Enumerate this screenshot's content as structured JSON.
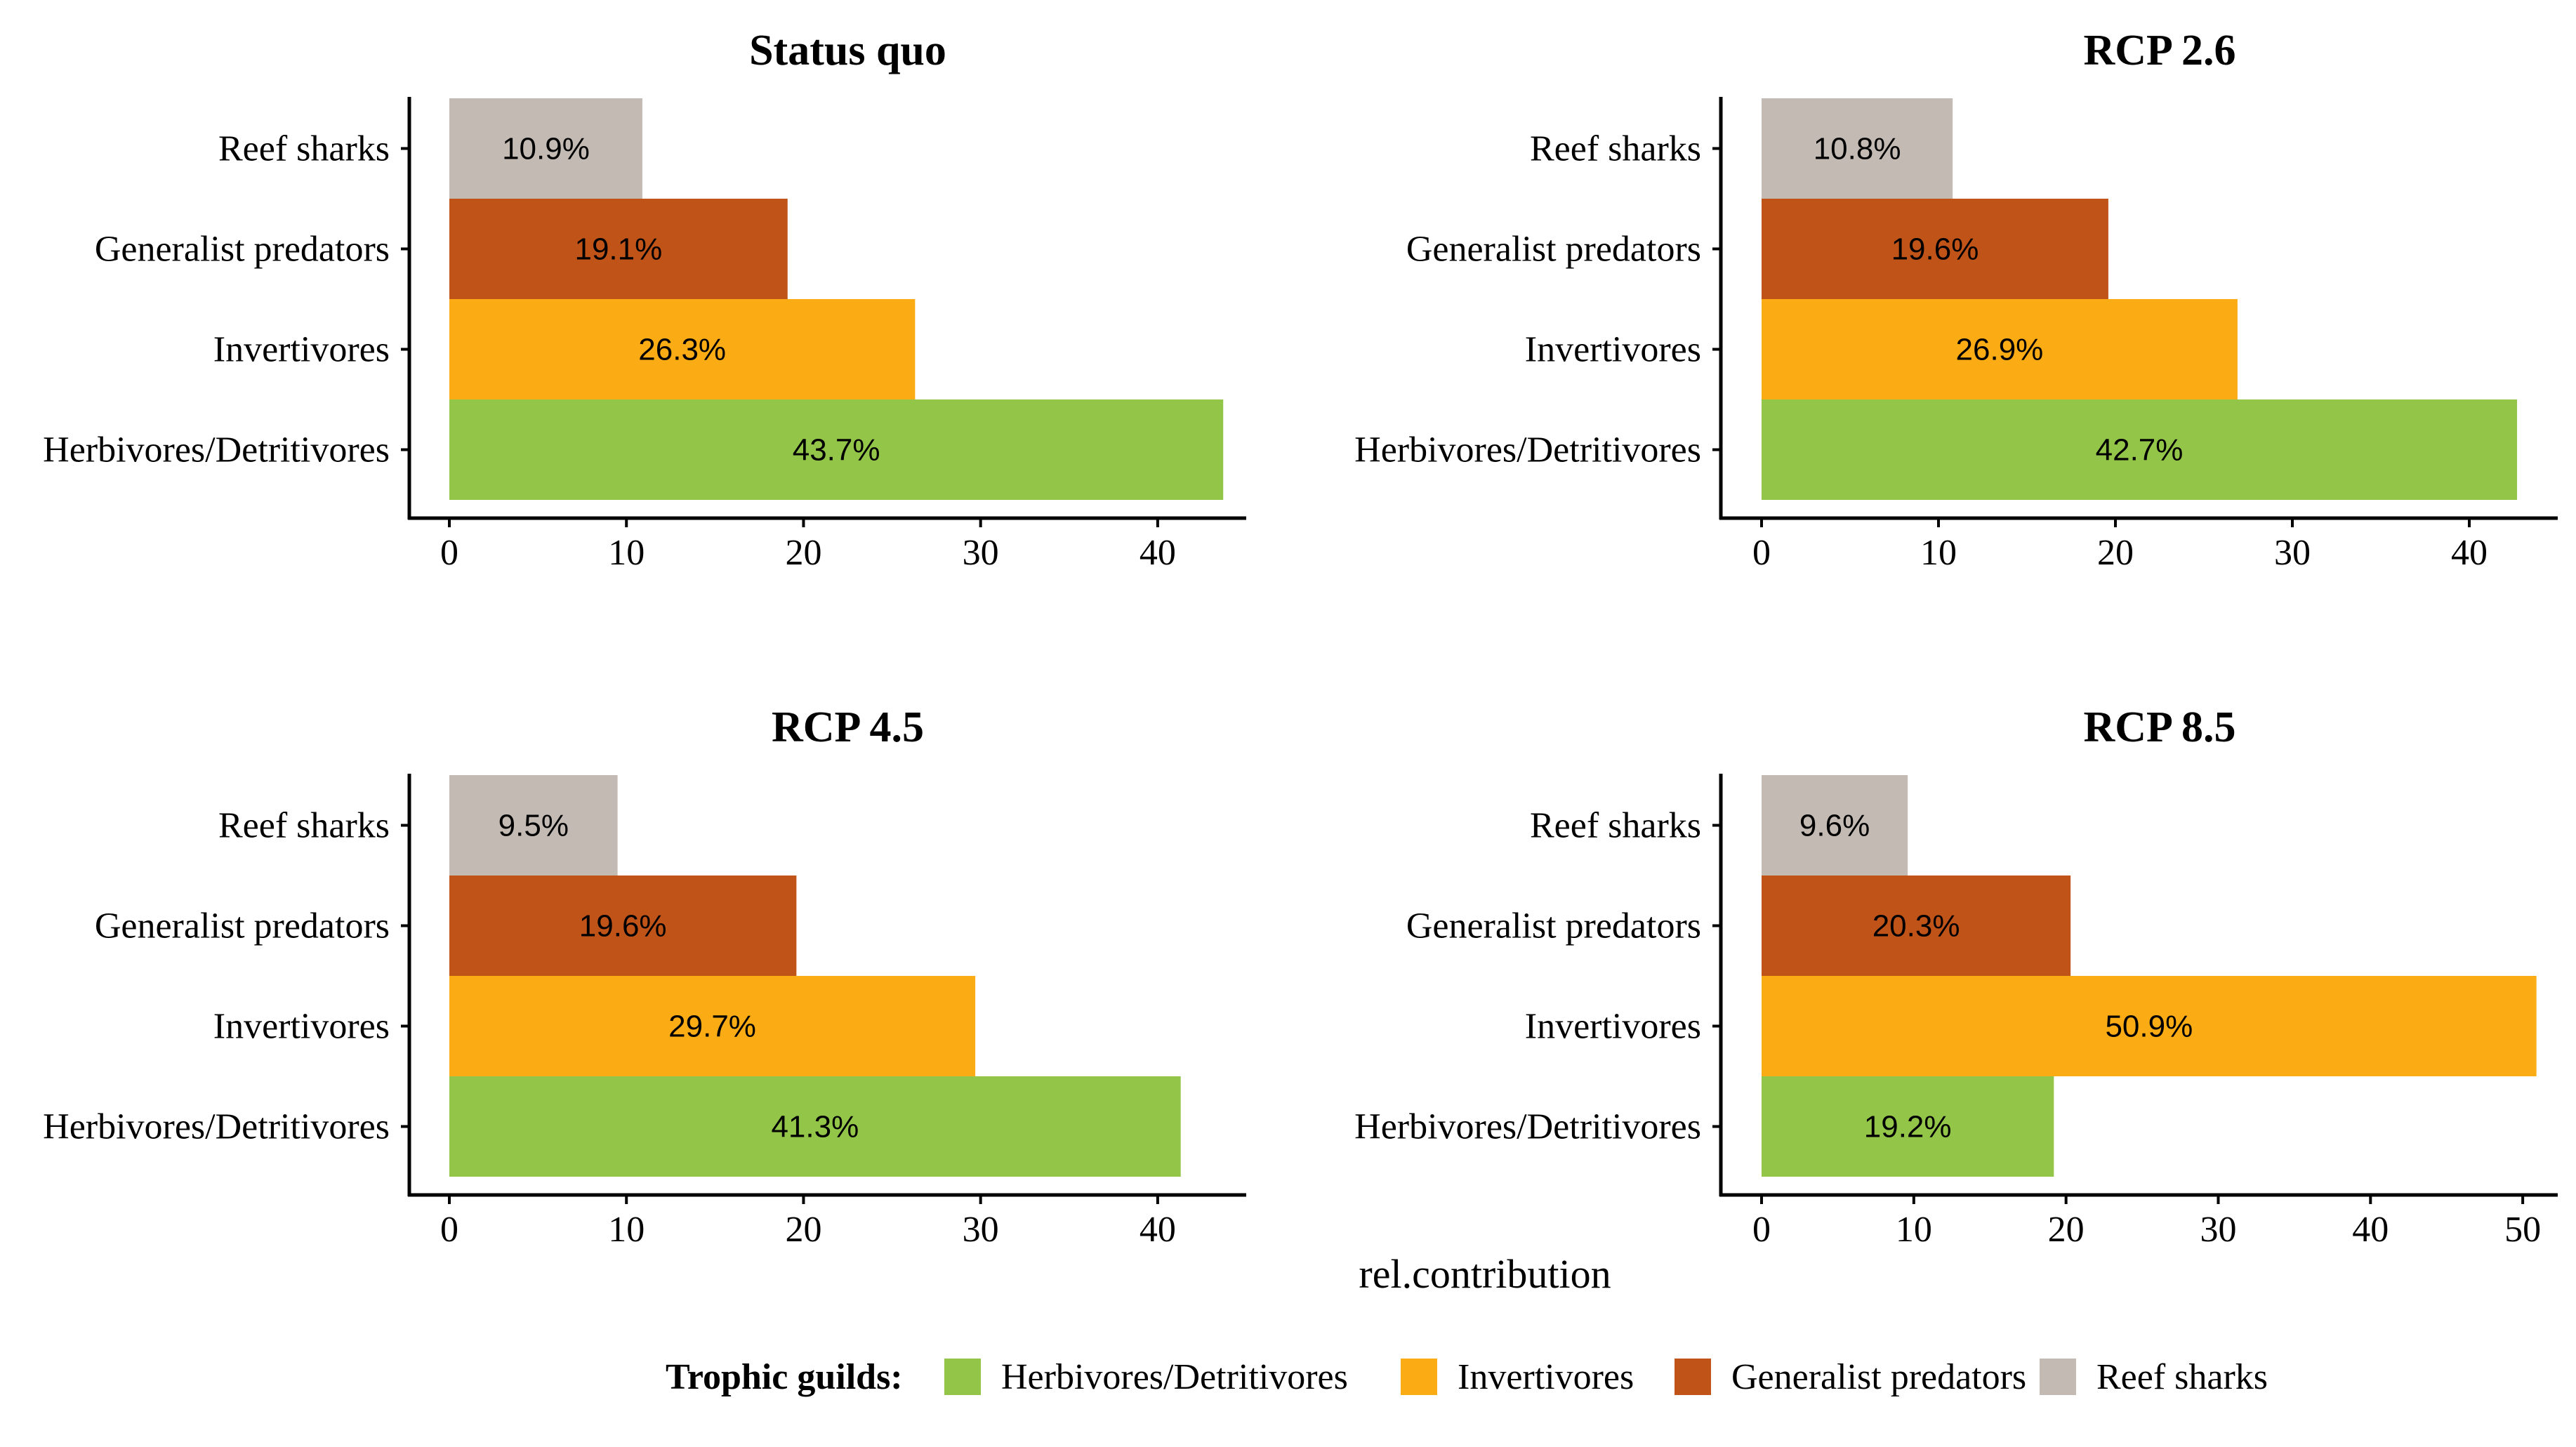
{
  "chart_data": [
    {
      "type": "bar",
      "orientation": "horizontal",
      "title": "Status quo",
      "categories": [
        "Reef sharks",
        "Generalist predators",
        "Invertivores",
        "Herbivores/Detritivores"
      ],
      "values": [
        10.9,
        19.1,
        26.3,
        43.7
      ],
      "labels": [
        "10.9%",
        "19.1%",
        "26.3%",
        "43.7%"
      ],
      "xlim": [
        0,
        45
      ],
      "xticks": [
        0,
        10,
        20,
        30,
        40
      ]
    },
    {
      "type": "bar",
      "orientation": "horizontal",
      "title": "RCP 2.6",
      "categories": [
        "Reef sharks",
        "Generalist predators",
        "Invertivores",
        "Herbivores/Detritivores"
      ],
      "values": [
        10.8,
        19.6,
        26.9,
        42.7
      ],
      "labels": [
        "10.8%",
        "19.6%",
        "26.9%",
        "42.7%"
      ],
      "xlim": [
        0,
        45
      ],
      "xticks": [
        0,
        10,
        20,
        30,
        40
      ]
    },
    {
      "type": "bar",
      "orientation": "horizontal",
      "title": "RCP 4.5",
      "categories": [
        "Reef sharks",
        "Generalist predators",
        "Invertivores",
        "Herbivores/Detritivores"
      ],
      "values": [
        9.5,
        19.6,
        29.7,
        41.3
      ],
      "labels": [
        "9.5%",
        "19.6%",
        "29.7%",
        "41.3%"
      ],
      "xlim": [
        0,
        45
      ],
      "xticks": [
        0,
        10,
        20,
        30,
        40
      ]
    },
    {
      "type": "bar",
      "orientation": "horizontal",
      "title": "RCP 8.5",
      "categories": [
        "Reef sharks",
        "Generalist predators",
        "Invertivores",
        "Herbivores/Detritivores"
      ],
      "values": [
        9.6,
        20.3,
        50.9,
        19.2
      ],
      "labels": [
        "9.6%",
        "20.3%",
        "50.9%",
        "19.2%"
      ],
      "xlim": [
        0,
        52.3
      ],
      "xticks": [
        0,
        10,
        20,
        30,
        40,
        50
      ]
    }
  ],
  "xlabel": "rel.contribution",
  "colors": {
    "Reef sharks": "#c3bab3",
    "Generalist predators": "#c05318",
    "Invertivores": "#fbab14",
    "Herbivores/Detritivores": "#93c648"
  },
  "legend": {
    "title": "Trophic guilds:",
    "items": [
      "Herbivores/Detritivores",
      "Invertivores",
      "Generalist predators",
      "Reef sharks"
    ]
  }
}
